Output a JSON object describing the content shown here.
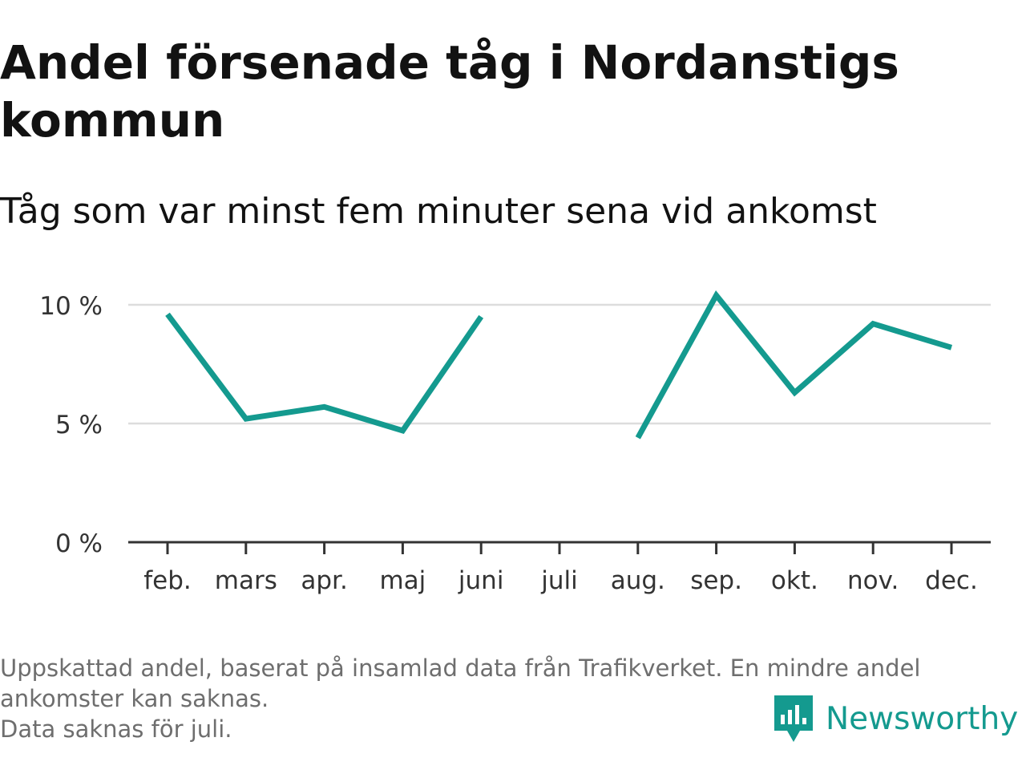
{
  "header": {
    "title": "Andel försenade tåg i Nordanstigs kommun",
    "subtitle": "Tåg som var minst fem minuter sena vid ankomst"
  },
  "footnote": {
    "lines": [
      "Uppskattad andel, baserat på insamlad data från Trafikverket. En mindre andel",
      "ankomster kan saknas.",
      "Data saknas för juli."
    ]
  },
  "brand": {
    "name": "Newsworthy",
    "icon": "newsworthy-logo-icon",
    "color": "#149a8f"
  },
  "chart_data": {
    "type": "line",
    "categories": [
      "feb.",
      "mars",
      "apr.",
      "maj",
      "juni",
      "juli",
      "aug.",
      "sep.",
      "okt.",
      "nov.",
      "dec."
    ],
    "series": [
      {
        "values": [
          9.6,
          5.2,
          5.7,
          4.7,
          9.5,
          null,
          4.4,
          10.4,
          6.3,
          9.2,
          8.2
        ],
        "color": "#149a8f"
      }
    ],
    "ylim": [
      0,
      10.5
    ],
    "yticks": [
      0,
      5,
      10
    ],
    "ytick_labels": [
      "0 %",
      "5 %",
      "10 %"
    ],
    "xlabel": "",
    "ylabel": "",
    "grid": true,
    "gridline_color": "#dddddd",
    "axis_color": "#333333"
  }
}
